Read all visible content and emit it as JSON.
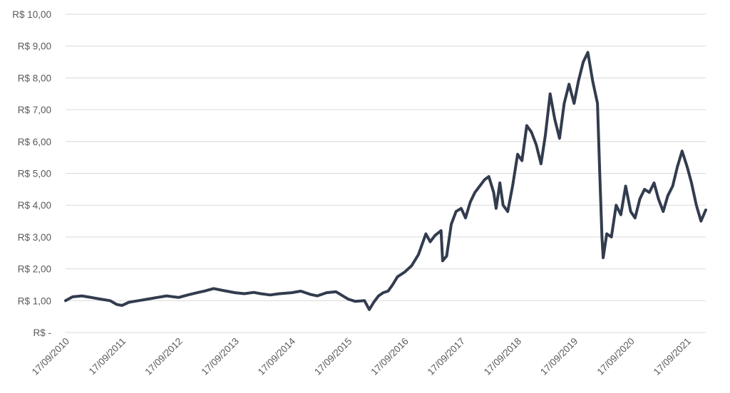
{
  "chart_data": {
    "type": "line",
    "title": "",
    "xlabel": "",
    "ylabel": "",
    "ylim": [
      0,
      10
    ],
    "y_ticks": [
      {
        "value": 0,
        "label": "R$ -"
      },
      {
        "value": 1,
        "label": "R$ 1,00"
      },
      {
        "value": 2,
        "label": "R$ 2,00"
      },
      {
        "value": 3,
        "label": "R$ 3,00"
      },
      {
        "value": 4,
        "label": "R$ 4,00"
      },
      {
        "value": 5,
        "label": "R$ 5,00"
      },
      {
        "value": 6,
        "label": "R$ 6,00"
      },
      {
        "value": 7,
        "label": "R$ 7,00"
      },
      {
        "value": 8,
        "label": "R$ 8,00"
      },
      {
        "value": 9,
        "label": "R$ 9,00"
      },
      {
        "value": 10,
        "label": "R$ 10,00"
      }
    ],
    "x_ticks": [
      {
        "date": "2010-09-17",
        "label": "17/09/2010"
      },
      {
        "date": "2011-09-17",
        "label": "17/09/2011"
      },
      {
        "date": "2012-09-17",
        "label": "17/09/2012"
      },
      {
        "date": "2013-09-17",
        "label": "17/09/2013"
      },
      {
        "date": "2014-09-17",
        "label": "17/09/2014"
      },
      {
        "date": "2015-09-17",
        "label": "17/09/2015"
      },
      {
        "date": "2016-09-17",
        "label": "17/09/2016"
      },
      {
        "date": "2017-09-17",
        "label": "17/09/2017"
      },
      {
        "date": "2018-09-17",
        "label": "17/09/2018"
      },
      {
        "date": "2019-09-17",
        "label": "17/09/2019"
      },
      {
        "date": "2020-09-17",
        "label": "17/09/2020"
      },
      {
        "date": "2021-09-17",
        "label": "17/09/2021"
      }
    ],
    "xlim": [
      "2010-09-17",
      "2022-01-15"
    ],
    "grid": true,
    "legend": "none",
    "line_color": "#323c4e",
    "series": [
      {
        "x": [
          "2010-09-17",
          "2010-11-01",
          "2011-01-01",
          "2011-03-01",
          "2011-05-01",
          "2011-07-01",
          "2011-08-15",
          "2011-09-17",
          "2011-11-01",
          "2012-01-01",
          "2012-03-01",
          "2012-05-01",
          "2012-07-01",
          "2012-09-17",
          "2012-11-15",
          "2013-01-15",
          "2013-03-01",
          "2013-05-01",
          "2013-07-01",
          "2013-09-17",
          "2013-11-15",
          "2014-01-15",
          "2014-03-01",
          "2014-05-01",
          "2014-07-01",
          "2014-09-17",
          "2014-11-15",
          "2015-01-15",
          "2015-03-01",
          "2015-05-01",
          "2015-07-01",
          "2015-09-17",
          "2015-11-01",
          "2016-01-01",
          "2016-02-01",
          "2016-03-01",
          "2016-04-01",
          "2016-05-01",
          "2016-06-01",
          "2016-07-01",
          "2016-08-01",
          "2016-09-17",
          "2016-11-01",
          "2016-12-15",
          "2017-02-01",
          "2017-03-01",
          "2017-04-01",
          "2017-05-10",
          "2017-05-20",
          "2017-06-15",
          "2017-07-15",
          "2017-08-15",
          "2017-09-17",
          "2017-10-15",
          "2017-11-15",
          "2017-12-15",
          "2018-01-15",
          "2018-02-15",
          "2018-03-15",
          "2018-04-15",
          "2018-05-01",
          "2018-05-25",
          "2018-06-15",
          "2018-07-15",
          "2018-08-15",
          "2018-09-17",
          "2018-10-15",
          "2018-11-15",
          "2018-12-15",
          "2019-01-15",
          "2019-02-15",
          "2019-03-15",
          "2019-04-15",
          "2019-05-15",
          "2019-06-15",
          "2019-07-15",
          "2019-08-15",
          "2019-09-17",
          "2019-10-15",
          "2019-11-15",
          "2019-12-15",
          "2020-01-15",
          "2020-02-15",
          "2020-03-01",
          "2020-03-15",
          "2020-03-23",
          "2020-04-15",
          "2020-05-15",
          "2020-06-15",
          "2020-07-15",
          "2020-08-15",
          "2020-09-17",
          "2020-10-15",
          "2020-11-15",
          "2020-12-15",
          "2021-01-15",
          "2021-02-15",
          "2021-03-15",
          "2021-04-15",
          "2021-05-15",
          "2021-06-15",
          "2021-07-15",
          "2021-08-15",
          "2021-09-17",
          "2021-10-15",
          "2021-11-15",
          "2021-12-15",
          "2022-01-15"
        ],
        "values": [
          1.0,
          1.12,
          1.15,
          1.1,
          1.05,
          1.0,
          0.88,
          0.85,
          0.95,
          1.0,
          1.05,
          1.1,
          1.15,
          1.1,
          1.18,
          1.25,
          1.3,
          1.38,
          1.32,
          1.25,
          1.22,
          1.26,
          1.22,
          1.18,
          1.22,
          1.25,
          1.3,
          1.2,
          1.15,
          1.25,
          1.28,
          1.05,
          0.98,
          1.0,
          0.72,
          0.95,
          1.15,
          1.25,
          1.3,
          1.5,
          1.75,
          1.9,
          2.1,
          2.45,
          3.1,
          2.85,
          3.05,
          3.2,
          2.25,
          2.4,
          3.4,
          3.8,
          3.9,
          3.6,
          4.1,
          4.4,
          4.6,
          4.8,
          4.9,
          4.4,
          3.9,
          4.7,
          4.0,
          3.8,
          4.6,
          5.6,
          5.4,
          6.5,
          6.3,
          5.9,
          5.3,
          6.2,
          7.5,
          6.7,
          6.1,
          7.2,
          7.8,
          7.2,
          7.9,
          8.5,
          8.8,
          7.9,
          7.2,
          5.0,
          3.0,
          2.35,
          3.1,
          3.0,
          4.0,
          3.7,
          4.6,
          3.8,
          3.6,
          4.2,
          4.5,
          4.4,
          4.7,
          4.2,
          3.8,
          4.3,
          4.6,
          5.2,
          5.7,
          5.2,
          4.7,
          4.0,
          3.5,
          3.85
        ]
      }
    ]
  }
}
